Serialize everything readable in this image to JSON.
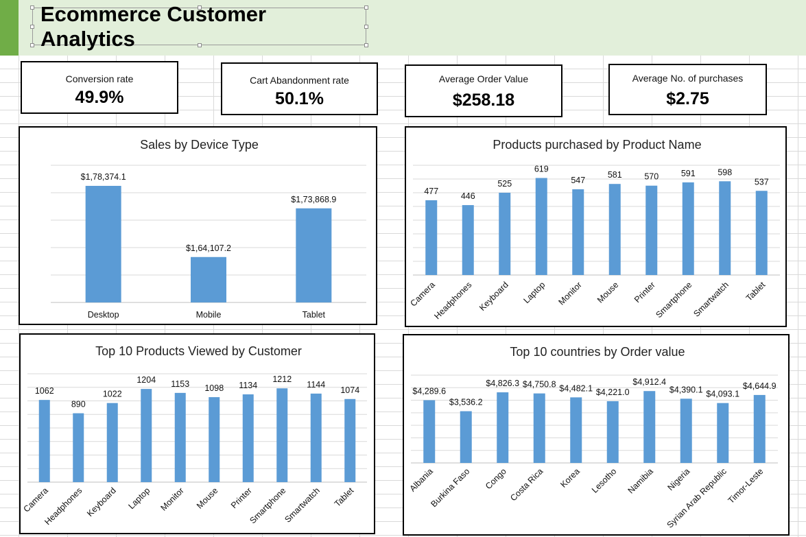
{
  "header": {
    "title": "Ecommerce Customer Analytics"
  },
  "kpis": {
    "conversion": {
      "label": "Conversion rate",
      "value": "49.9%"
    },
    "cart_abandonment": {
      "label": "Cart Abandonment rate",
      "value": "50.1%"
    },
    "avg_order_value": {
      "label": "Average Order Value",
      "value": "$258.18"
    },
    "avg_purchases": {
      "label": "Average No. of purchases",
      "value": "$2.75"
    }
  },
  "colors": {
    "bar": "#5b9bd5",
    "header_band": "#e2efda",
    "header_accent": "#70ad47"
  },
  "chart_data": [
    {
      "type": "bar",
      "title": "Sales by Device Type",
      "categories": [
        "Desktop",
        "Mobile",
        "Tablet"
      ],
      "values": [
        178374.1,
        164107.2,
        173868.9
      ],
      "data_labels": [
        "$1,78,374.1",
        "$1,64,107.2",
        "$1,73,868.9"
      ],
      "ylim": [
        155000,
        182500
      ],
      "grid": true,
      "label_rotation": 0
    },
    {
      "type": "bar",
      "title": "Products purchased by Product Name",
      "categories": [
        "Camera",
        "Headphones",
        "Keyboard",
        "Laptop",
        "Monitor",
        "Mouse",
        "Printer",
        "Smartphone",
        "Smartwatch",
        "Tablet"
      ],
      "values": [
        477,
        446,
        525,
        619,
        547,
        581,
        570,
        591,
        598,
        537
      ],
      "data_labels": [
        "477",
        "446",
        "525",
        "619",
        "547",
        "581",
        "570",
        "591",
        "598",
        "537"
      ],
      "ylim": [
        0,
        700
      ],
      "grid": true,
      "label_rotation": -45
    },
    {
      "type": "bar",
      "title": "Top 10 Products Viewed by Customer",
      "categories": [
        "Camera",
        "Headphones",
        "Keyboard",
        "Laptop",
        "Monitor",
        "Mouse",
        "Printer",
        "Smartphone",
        "Smartwatch",
        "Tablet"
      ],
      "values": [
        1062,
        890,
        1022,
        1204,
        1153,
        1098,
        1134,
        1212,
        1144,
        1074
      ],
      "data_labels": [
        "1062",
        "890",
        "1022",
        "1204",
        "1153",
        "1098",
        "1134",
        "1212",
        "1144",
        "1074"
      ],
      "ylim": [
        0,
        1400
      ],
      "grid": true,
      "label_rotation": -45
    },
    {
      "type": "bar",
      "title": "Top 10 countries by Order value",
      "categories": [
        "Albania",
        "Burkina Faso",
        "Congo",
        "Costa Rica",
        "Korea",
        "Lesotho",
        "Namibia",
        "Nigeria",
        "Syrian Arab Republic",
        "Timor-Leste"
      ],
      "values": [
        4289.6,
        3536.2,
        4826.3,
        4750.8,
        4482.1,
        4221.0,
        4912.4,
        4390.1,
        4093.1,
        4644.9
      ],
      "data_labels": [
        "$4,289.6",
        "$3,536.2",
        "$4,826.3",
        "$4,750.8",
        "$4,482.1",
        "$4,221.0",
        "$4,912.4",
        "$4,390.1",
        "$4,093.1",
        "$4,644.9"
      ],
      "ylim": [
        0,
        6000
      ],
      "grid": true,
      "label_rotation": -45
    }
  ]
}
